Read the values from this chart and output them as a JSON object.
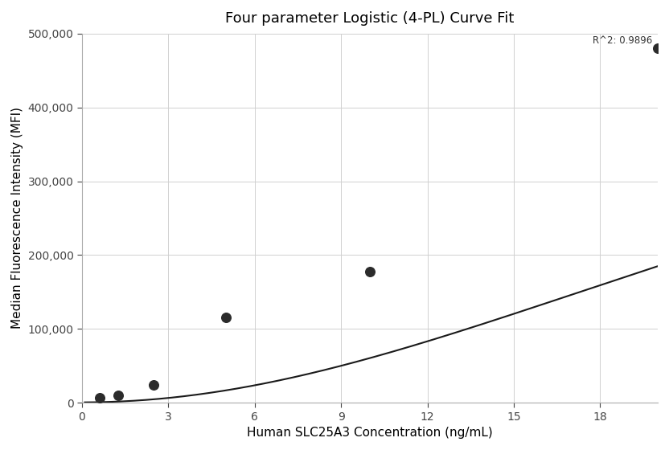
{
  "title": "Four parameter Logistic (4-PL) Curve Fit",
  "xlabel": "Human SLC25A3 Concentration (ng/mL)",
  "ylabel": "Median Fluorescence Intensity (MFI)",
  "scatter_x": [
    0.625,
    1.25,
    2.5,
    5.0,
    10.0,
    20.0
  ],
  "scatter_y": [
    7000,
    9500,
    24000,
    115000,
    178000,
    480000
  ],
  "xlim": [
    0,
    20
  ],
  "ylim": [
    0,
    500000
  ],
  "xticks": [
    0,
    3,
    6,
    9,
    12,
    15,
    18
  ],
  "yticks": [
    0,
    100000,
    200000,
    300000,
    400000,
    500000
  ],
  "ytick_labels": [
    "0",
    "100,000",
    "200,000",
    "300,000",
    "400,000",
    "500,000"
  ],
  "r_squared_text": "R^2: 0.9896",
  "curve_color": "#1a1a1a",
  "scatter_color": "#2b2b2b",
  "scatter_size": 70,
  "background_color": "#ffffff",
  "grid_color": "#d0d0d0",
  "title_fontsize": 13,
  "label_fontsize": 11,
  "tick_fontsize": 10
}
